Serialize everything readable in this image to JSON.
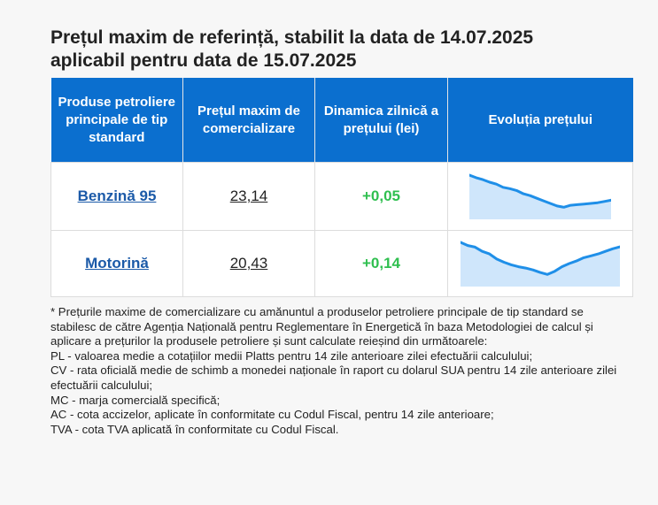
{
  "title_line1": "Prețul maxim de referință, stabilit la data de 14.07.2025",
  "title_line2": "aplicabil pentru data de 15.07.2025",
  "table": {
    "headers": [
      "Produse petroliere principale de tip standard",
      "Prețul maxim de comercializare",
      "Dinamica zilnică a prețului (lei)",
      "Evoluția prețului"
    ],
    "rows": [
      {
        "product": "Benzină 95",
        "price": "23,14",
        "delta": "+0,05"
      },
      {
        "product": "Motorină",
        "price": "20,43",
        "delta": "+0,14"
      }
    ]
  },
  "colors": {
    "header_bg": "#0b6fcf",
    "link": "#1b5aa8",
    "positive": "#2fbf4f",
    "spark_line": "#1f8fe8",
    "spark_fill": "#cfe6fb"
  },
  "chart_data": [
    {
      "type": "area",
      "series": [
        {
          "values": [
            1.0,
            0.92,
            0.86,
            0.78,
            0.72,
            0.62,
            0.58,
            0.52,
            0.42,
            0.36,
            0.28,
            0.2,
            0.12,
            0.04,
            0.0,
            0.06,
            0.08,
            0.1,
            0.12,
            0.14,
            0.18,
            0.22
          ]
        }
      ]
    },
    {
      "type": "area",
      "series": [
        {
          "values": [
            1.0,
            0.9,
            0.85,
            0.72,
            0.64,
            0.48,
            0.38,
            0.3,
            0.24,
            0.2,
            0.14,
            0.06,
            0.0,
            0.1,
            0.24,
            0.34,
            0.42,
            0.52,
            0.58,
            0.64,
            0.72,
            0.8,
            0.86
          ]
        }
      ]
    }
  ],
  "notes": [
    "* Prețurile maxime de comercializare cu amănuntul a produselor petroliere principale de tip standard se stabilesc de către Agenția Națională pentru Reglementare în Energetică în baza Metodologiei de calcul și aplicare a prețurilor la produsele petroliere și sunt calculate reieșind din următoarele:",
    "PL - valoarea medie a cotațiilor medii Platts pentru 14 zile anterioare zilei efectuării calculului;",
    "CV - rata oficială medie de schimb a monedei naționale în raport cu dolarul SUA pentru 14 zile anterioare zilei efectuării calculului;",
    "MC - marja comercială specifică;",
    "AC - cota accizelor, aplicate în conformitate cu Codul Fiscal, pentru 14 zile anterioare;",
    "TVA - cota TVA aplicată în conformitate cu Codul Fiscal."
  ]
}
